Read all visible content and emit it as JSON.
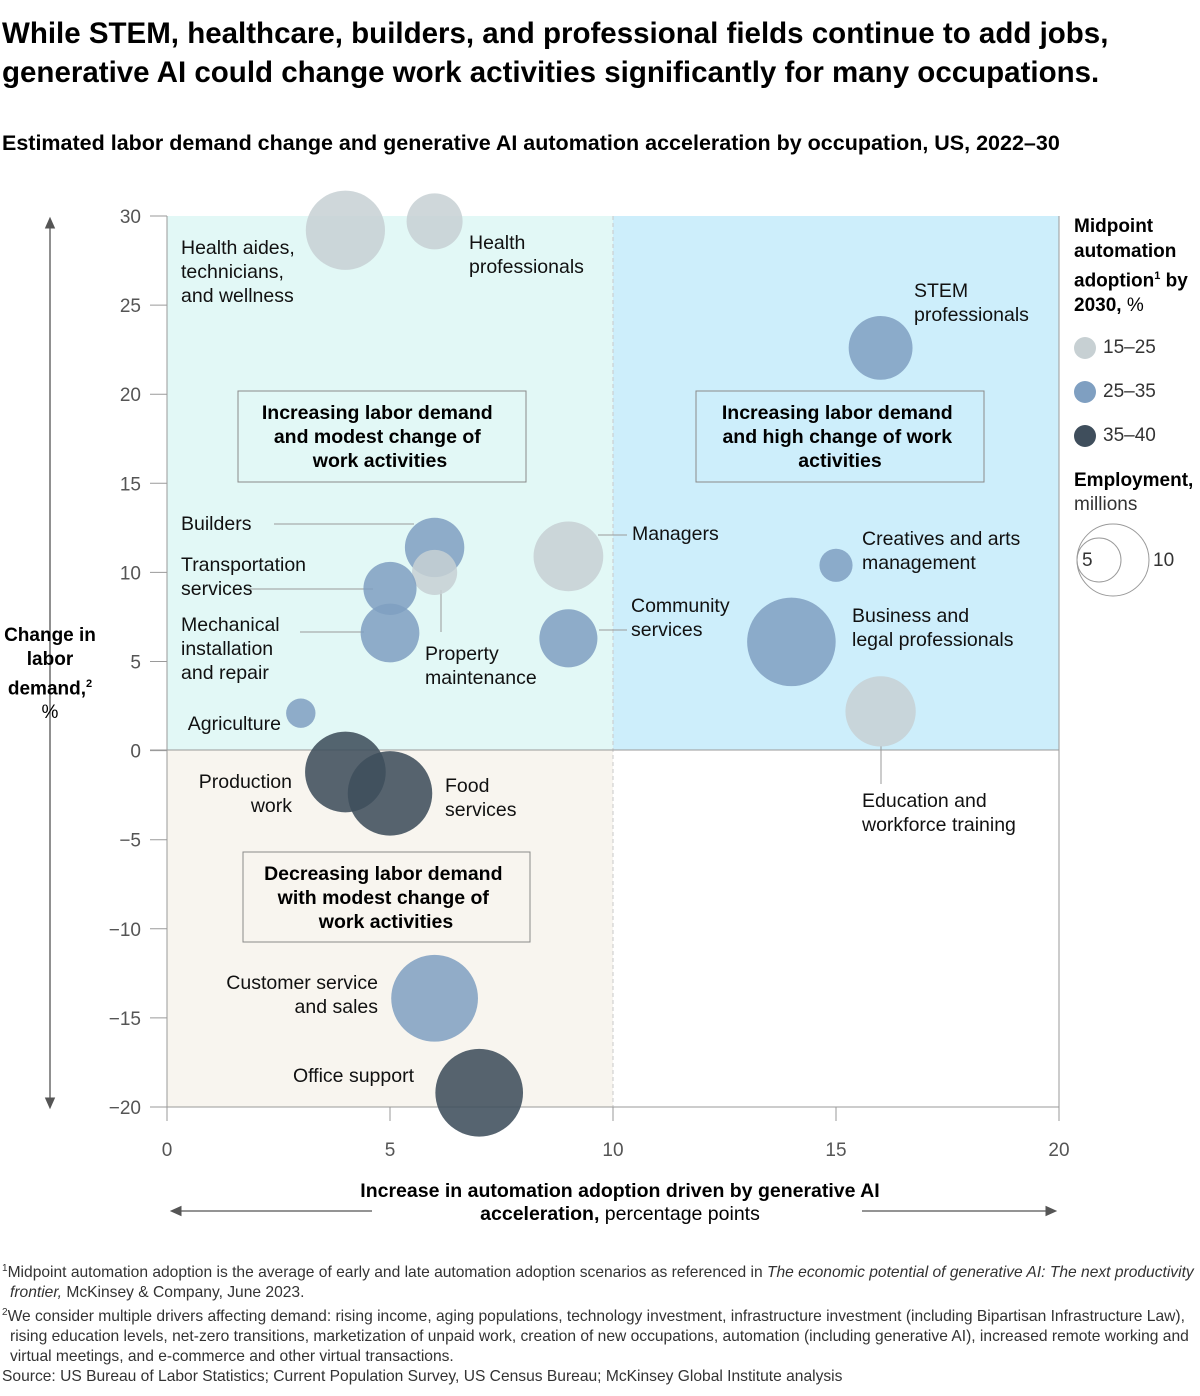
{
  "headline": "While STEM, healthcare, builders, and professional fields continue to add jobs, generative AI could change work activities significantly for many occupations.",
  "subtitle": "Estimated labor demand change and generative AI automation acceleration by occupation, US, 2022–30",
  "y_axis": {
    "label_bold": "Change in labor demand,",
    "label_sup": "2",
    "label_unit": "%"
  },
  "x_axis": {
    "label_bold": "Increase in automation adoption driven by generative AI acceleration,",
    "label_rest": " percentage points"
  },
  "legend": {
    "title": "Midpoint automation adoption",
    "title_sup": "1",
    "title_suffix": "by 2030,",
    "title_unit": " %",
    "items": [
      {
        "label": "15–25",
        "color": "#c7d0d3"
      },
      {
        "label": "25–35",
        "color": "#7f9fc1"
      },
      {
        "label": "35–40",
        "color": "#3f4e5c"
      }
    ],
    "employment_title": "Employment,",
    "employment_unit": "millions",
    "size_small": "5",
    "size_large": "10"
  },
  "chart_data": {
    "type": "scatter",
    "x_range": [
      0,
      20
    ],
    "y_range": [
      -20,
      30
    ],
    "x_ticks": [
      "0",
      "5",
      "10",
      "15",
      "20"
    ],
    "y_ticks": [
      "30",
      "25",
      "20",
      "15",
      "10",
      "5",
      "0",
      "−5",
      "−10",
      "−15",
      "−20"
    ],
    "quadrants": [
      {
        "label": "Increasing labor demand and modest change of work activities",
        "color": "#e2f8f6"
      },
      {
        "label": "Increasing labor demand and high change of work activities",
        "color": "#cdeefb"
      },
      {
        "label": "Decreasing labor demand with modest change of work activities",
        "color": "#f8f5ef"
      }
    ],
    "occupations": [
      {
        "name": "Health aides, technicians, and wellness",
        "x": 4.0,
        "y": 29.2,
        "employment": 8.0,
        "adoption": "15–25"
      },
      {
        "name": "Health professionals",
        "x": 6.0,
        "y": 29.7,
        "employment": 4.0,
        "adoption": "15–25"
      },
      {
        "name": "STEM professionals",
        "x": 16.0,
        "y": 22.6,
        "employment": 5.2,
        "adoption": "25–35"
      },
      {
        "name": "Builders",
        "x": 6.0,
        "y": 11.4,
        "employment": 4.5,
        "adoption": "25–35"
      },
      {
        "name": "Property maintenance",
        "x": 6.0,
        "y": 10.0,
        "employment": 2.6,
        "adoption": "15–25"
      },
      {
        "name": "Transportation services",
        "x": 5.0,
        "y": 9.1,
        "employment": 3.6,
        "adoption": "25–35"
      },
      {
        "name": "Mechanical installation and repair",
        "x": 5.0,
        "y": 6.6,
        "employment": 4.4,
        "adoption": "25–35"
      },
      {
        "name": "Managers",
        "x": 9.0,
        "y": 10.9,
        "employment": 6.2,
        "adoption": "15–25"
      },
      {
        "name": "Community services",
        "x": 9.0,
        "y": 6.3,
        "employment": 4.3,
        "adoption": "25–35"
      },
      {
        "name": "Creatives and arts management",
        "x": 15.0,
        "y": 10.4,
        "employment": 1.4,
        "adoption": "25–35"
      },
      {
        "name": "Business and legal professionals",
        "x": 14.0,
        "y": 6.1,
        "employment": 10.0,
        "adoption": "25–35"
      },
      {
        "name": "Education and workforce training",
        "x": 16.0,
        "y": 2.2,
        "employment": 6.3,
        "adoption": "15–25"
      },
      {
        "name": "Agriculture",
        "x": 3.0,
        "y": 2.1,
        "employment": 1.1,
        "adoption": "25–35"
      },
      {
        "name": "Production work",
        "x": 4.0,
        "y": -1.2,
        "employment": 8.3,
        "adoption": "35–40"
      },
      {
        "name": "Food services",
        "x": 5.0,
        "y": -2.4,
        "employment": 9.1,
        "adoption": "35–40"
      },
      {
        "name": "Customer service and sales",
        "x": 6.0,
        "y": -13.9,
        "employment": 9.6,
        "adoption": "25–35"
      },
      {
        "name": "Office support",
        "x": 7.0,
        "y": -19.2,
        "employment": 9.8,
        "adoption": "35–40"
      }
    ]
  },
  "point_labels": {
    "health_aides": [
      "Health aides,",
      "technicians,",
      "and wellness"
    ],
    "health_prof": [
      "Health",
      "professionals"
    ],
    "stem": [
      "STEM",
      "professionals"
    ],
    "builders": [
      "Builders"
    ],
    "property": [
      "Property",
      "maintenance"
    ],
    "transport": [
      "Transportation",
      "services"
    ],
    "mechanical": [
      "Mechanical",
      "installation",
      "and repair"
    ],
    "managers": [
      "Managers"
    ],
    "community": [
      "Community",
      "services"
    ],
    "creatives": [
      "Creatives and arts",
      "management"
    ],
    "business": [
      "Business and",
      "legal professionals"
    ],
    "education": [
      "Education and",
      "workforce training"
    ],
    "agriculture": [
      "Agriculture"
    ],
    "production": [
      "Production",
      "work"
    ],
    "food": [
      "Food",
      "services"
    ],
    "customer": [
      "Customer service",
      "and sales"
    ],
    "office": [
      "Office support"
    ]
  },
  "quadrant_box_lines": {
    "q1": [
      "Increasing labor demand",
      "and modest change of",
      "work activities"
    ],
    "q2": [
      "Increasing labor demand",
      "and high change of work",
      "activities"
    ],
    "q3": [
      "Decreasing labor demand",
      "with modest change of",
      "work activities"
    ]
  },
  "footnotes": {
    "fn1_sup": "1",
    "fn1_text": "Midpoint automation adoption is the average of early and late automation adoption scenarios as referenced in ",
    "fn1_italic": "The economic potential of generative AI: The next productivity frontier,",
    "fn1_end": " McKinsey & Company, June 2023.",
    "fn2_sup": "2",
    "fn2_text": "We consider multiple drivers affecting demand: rising income, aging populations, technology investment, infrastructure investment (including Bipartisan Infrastructure Law), rising education levels, net-zero transitions, marketization of unpaid work, creation of new occupations, automation (including generative AI), increased remote working and virtual meetings, and e-commerce and other virtual transactions.",
    "source": "Source: US Bureau of Labor Statistics; Current Population Survey, US Census Bureau; McKinsey Global Institute analysis"
  }
}
